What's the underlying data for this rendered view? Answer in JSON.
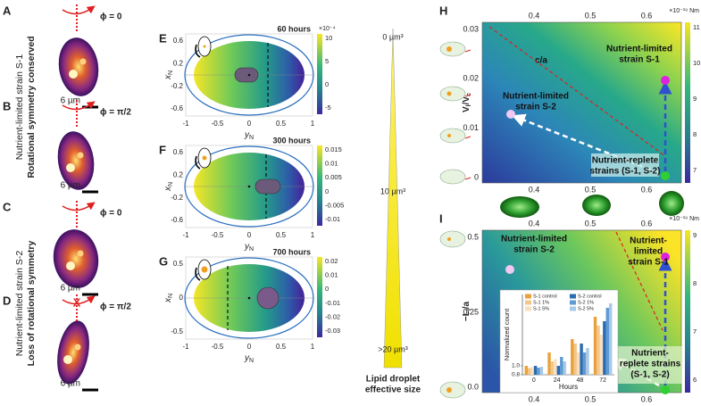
{
  "left_panels": [
    {
      "label": "A",
      "phi": "ϕ = 0",
      "scale": "6 µm"
    },
    {
      "label": "B",
      "phi": "ϕ = π/2",
      "scale": "6 µm"
    },
    {
      "label": "C",
      "phi": "ϕ = 0",
      "scale": "6 µm"
    },
    {
      "label": "D",
      "phi": "ϕ = π/2",
      "scale": "6 µm",
      "blocked": "X"
    }
  ],
  "side_labels": [
    {
      "lines": [
        "Nutrient-limited strain S-1",
        "Rotational symmetry conserved"
      ]
    },
    {
      "lines": [
        "Nutrient-limited strain S-2",
        "Loss of rotational symmetry"
      ]
    }
  ],
  "sim_axes": {
    "x_label": "y",
    "x_label_sub": "N",
    "y_label": "x",
    "y_label_sub": "N",
    "x_ticks": [
      "-1",
      "-0.5",
      "0",
      "0.5",
      "1"
    ]
  },
  "sim_panels": [
    {
      "label": "E",
      "time": "60 hours",
      "y_ticks": [
        "0.6",
        "0.2",
        "-0.2",
        "-0.6"
      ],
      "colorbar_ticks": [
        "10",
        "5",
        "0",
        "-5"
      ],
      "colorbar_exponent": "×10⁻⁴"
    },
    {
      "label": "F",
      "time": "300 hours",
      "y_ticks": [
        "0.6",
        "0.2",
        "-0.2",
        "-0.6"
      ],
      "colorbar_ticks": [
        "0.015",
        "0.01",
        "0.005",
        "0",
        "-0.005",
        "-0.01"
      ]
    },
    {
      "label": "G",
      "time": "700 hours",
      "y_ticks": [
        "0.5",
        "0",
        "-0.5"
      ],
      "colorbar_ticks": [
        "0.02",
        "0.01",
        "0",
        "-0.01",
        "-0.02",
        "-0.03"
      ]
    }
  ],
  "lipid": {
    "ticks": [
      "0 µm³",
      "10 µm³",
      ">20 µm³"
    ],
    "caption": [
      "Lipid droplet",
      "effective size"
    ]
  },
  "H": {
    "label": "H",
    "x_ticks": [
      "0.4",
      "0.5",
      "0.6"
    ],
    "title": "c/a",
    "y_ticks": [
      "0.03",
      "0.02",
      "0.01",
      "0"
    ],
    "y_label": [
      "V",
      "l",
      "/V",
      "c"
    ],
    "colorbar_ticks": [
      "11",
      "10",
      "9",
      "8",
      "7"
    ],
    "colorbar_unit": "×10⁻¹⁹ Nm",
    "annotations": [
      [
        "Nutrient-limited",
        "strain S-1"
      ],
      [
        "Nutrient-limited",
        "strain S-2"
      ],
      [
        "Nutrient-replete",
        "strains (S-1, S-2)"
      ]
    ]
  },
  "I": {
    "label": "I",
    "x_ticks": [
      "0.4",
      "0.5",
      "0.6"
    ],
    "y_ticks": [
      "0.5",
      "0.25",
      "0.0"
    ],
    "y_label": [
      "−L",
      "l",
      "/a"
    ],
    "colorbar_ticks": [
      "9",
      "8",
      "7",
      "6"
    ],
    "colorbar_unit": "×10⁻¹⁹ Nm",
    "annotations": [
      [
        "Nutrient-limited",
        "strain S-2"
      ],
      [
        "Nutrient-",
        "limited",
        "strain S-1"
      ],
      [
        "Nutrient-",
        "replete strains",
        "(S-1, S-2)"
      ]
    ],
    "inset": {
      "x_label": "Hours",
      "y_label": "Normalized count",
      "categories": [
        "0",
        "24",
        "48",
        "72"
      ],
      "ylim": [
        0.8,
        2.6
      ],
      "yticks": [
        0.8,
        {
          "value": 1,
          "label": "1.0"
        }
      ],
      "series": [
        {
          "name": "S-1 control",
          "color": "#e9a23b",
          "values": [
            1.0,
            1.3,
            1.6,
            2.1
          ]
        },
        {
          "name": "S-1 1%",
          "color": "#f3c68a",
          "values": [
            0.95,
            1.1,
            1.5,
            1.9
          ]
        },
        {
          "name": "S-1 5%",
          "color": "#f8dfbf",
          "values": [
            0.97,
            1.15,
            1.3,
            1.7
          ]
        },
        {
          "name": "S-2 control",
          "color": "#2b6cb0",
          "values": [
            1.0,
            1.0,
            1.5,
            2.0
          ]
        },
        {
          "name": "S-2 1%",
          "color": "#5e9bd3",
          "values": [
            0.96,
            1.2,
            1.3,
            2.3
          ]
        },
        {
          "name": "S-2 5%",
          "color": "#a9c9e8",
          "values": [
            0.98,
            1.1,
            1.4,
            2.4
          ]
        }
      ]
    }
  }
}
